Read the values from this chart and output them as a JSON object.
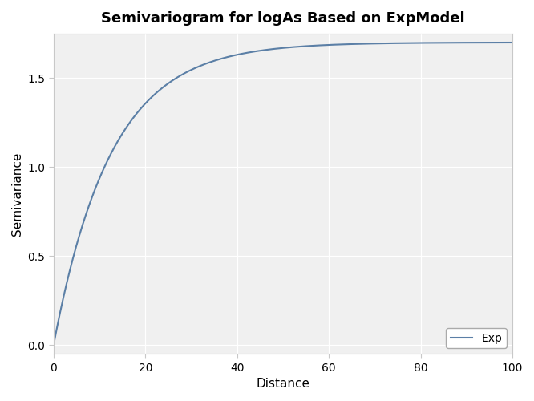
{
  "title": "Semivariogram for logAs Based on ExpModel",
  "xlabel": "Distance",
  "ylabel": "Semivariance",
  "legend_label": "Exp",
  "line_color": "#5b7fa6",
  "background_color": "#ffffff",
  "plot_bg_color": "#f0f0f0",
  "grid_color": "#ffffff",
  "border_color": "#c8c8c8",
  "xlim": [
    0,
    100
  ],
  "ylim": [
    -0.05,
    1.75
  ],
  "xticks": [
    0,
    20,
    40,
    60,
    80,
    100
  ],
  "yticks": [
    0.0,
    0.5,
    1.0,
    1.5
  ],
  "nugget": 0.0,
  "sill": 1.7,
  "range_param": 12.5,
  "title_fontsize": 13,
  "label_fontsize": 11,
  "tick_fontsize": 10,
  "legend_fontsize": 10,
  "line_width": 1.5
}
